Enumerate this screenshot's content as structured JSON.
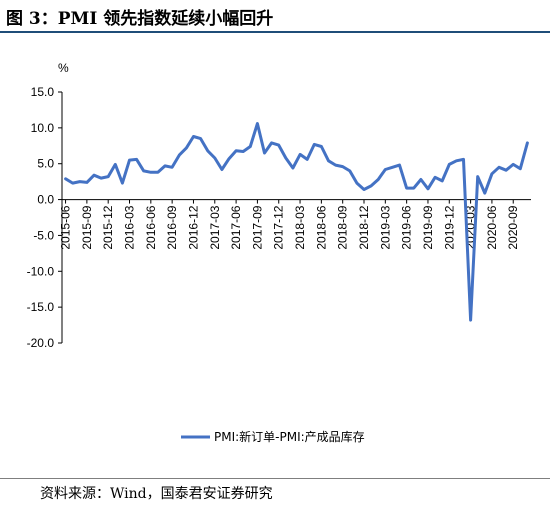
{
  "header": {
    "title": "图 3：PMI 领先指数延续小幅回升"
  },
  "footer": {
    "source": "资料来源：Wind，国泰君安证券研究"
  },
  "chart_data": {
    "type": "line",
    "title": "",
    "ylabel": "%",
    "xlabel": "",
    "ylim": [
      -20,
      15
    ],
    "yticks": [
      "15.0",
      "10.0",
      "5.0",
      "0.0",
      "-5.0",
      "-10.0",
      "-15.0",
      "-20.0"
    ],
    "yticks_values": [
      15,
      10,
      5,
      0,
      -5,
      -10,
      -15,
      -20
    ],
    "xticks": [
      "2015-06",
      "2015-09",
      "2015-12",
      "2016-03",
      "2016-06",
      "2016-09",
      "2016-12",
      "2017-03",
      "2017-06",
      "2017-09",
      "2017-12",
      "2018-03",
      "2018-06",
      "2018-09",
      "2018-12",
      "2019-03",
      "2019-06",
      "2019-09",
      "2019-12",
      "2020-03",
      "2020-06",
      "2020-09"
    ],
    "legend_position": "bottom-right",
    "grid": false,
    "colors": {
      "line": "#4472c4"
    },
    "series": [
      {
        "name": "PMI:新订单-PMI:产成品库存",
        "x": [
          "2015-06",
          "2015-07",
          "2015-08",
          "2015-09",
          "2015-10",
          "2015-11",
          "2015-12",
          "2016-01",
          "2016-02",
          "2016-03",
          "2016-04",
          "2016-05",
          "2016-06",
          "2016-07",
          "2016-08",
          "2016-09",
          "2016-10",
          "2016-11",
          "2016-12",
          "2017-01",
          "2017-02",
          "2017-03",
          "2017-04",
          "2017-05",
          "2017-06",
          "2017-07",
          "2017-08",
          "2017-09",
          "2017-10",
          "2017-11",
          "2017-12",
          "2018-01",
          "2018-02",
          "2018-03",
          "2018-04",
          "2018-05",
          "2018-06",
          "2018-07",
          "2018-08",
          "2018-09",
          "2018-10",
          "2018-11",
          "2018-12",
          "2019-01",
          "2019-02",
          "2019-03",
          "2019-04",
          "2019-05",
          "2019-06",
          "2019-07",
          "2019-08",
          "2019-09",
          "2019-10",
          "2019-11",
          "2019-12",
          "2020-01",
          "2020-02",
          "2020-03",
          "2020-04",
          "2020-05",
          "2020-06",
          "2020-07",
          "2020-08",
          "2020-09",
          "2020-10",
          "2020-11"
        ],
        "values": [
          2.9,
          2.3,
          2.5,
          2.4,
          3.4,
          3.0,
          3.2,
          4.9,
          2.3,
          5.5,
          5.6,
          4.0,
          3.8,
          3.8,
          4.7,
          4.5,
          6.2,
          7.2,
          8.8,
          8.5,
          6.8,
          5.8,
          4.2,
          5.7,
          6.8,
          6.7,
          7.4,
          10.6,
          6.5,
          7.9,
          7.6,
          5.8,
          4.4,
          6.3,
          5.6,
          7.7,
          7.4,
          5.4,
          4.8,
          4.6,
          4.0,
          2.3,
          1.4,
          1.9,
          2.8,
          4.2,
          4.5,
          4.8,
          1.6,
          1.6,
          2.8,
          1.5,
          3.1,
          2.6,
          4.9,
          5.4,
          5.6,
          -16.8,
          3.2,
          0.9,
          3.6,
          4.5,
          4.1,
          4.9,
          4.3,
          7.9
        ]
      }
    ]
  }
}
